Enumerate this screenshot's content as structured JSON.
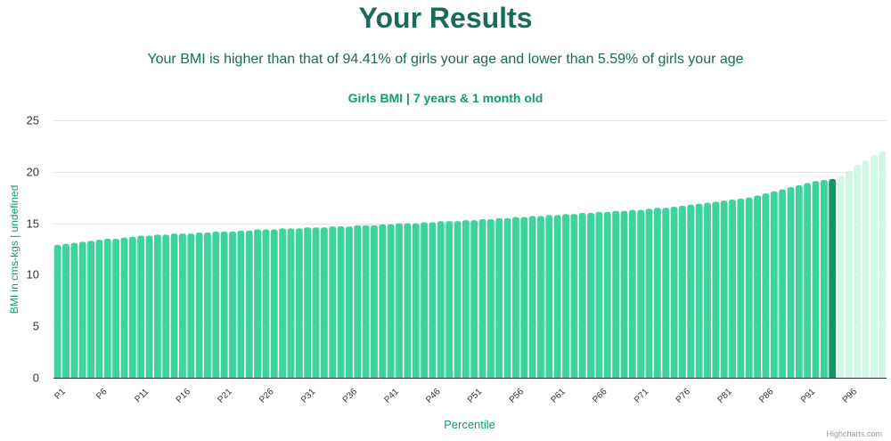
{
  "header": {
    "title": "Your Results",
    "summary": "Your BMI is higher than that of 94.41% of girls your age and lower than 5.59% of girls your age"
  },
  "credits": "Highcharts.com",
  "colors": {
    "bar": "#3dd39d",
    "highlight": "#0f9a65",
    "above": "#d2f7e6",
    "title": "#1a6b57",
    "chart_title": "#139b6a"
  },
  "chart_data": {
    "type": "bar",
    "title": "Girls BMI | 7 years & 1 month old",
    "xlabel": "Percentile",
    "ylabel": "BMI in cms-kgs | undefined",
    "ylim": [
      0,
      25
    ],
    "yticks": [
      0,
      5,
      10,
      15,
      20,
      25
    ],
    "grid": true,
    "categories": [
      "P1",
      "P2",
      "P3",
      "P4",
      "P5",
      "P6",
      "P7",
      "P8",
      "P9",
      "P10",
      "P11",
      "P12",
      "P13",
      "P14",
      "P15",
      "P16",
      "P17",
      "P18",
      "P19",
      "P20",
      "P21",
      "P22",
      "P23",
      "P24",
      "P25",
      "P26",
      "P27",
      "P28",
      "P29",
      "P30",
      "P31",
      "P32",
      "P33",
      "P34",
      "P35",
      "P36",
      "P37",
      "P38",
      "P39",
      "P40",
      "P41",
      "P42",
      "P43",
      "P44",
      "P45",
      "P46",
      "P47",
      "P48",
      "P49",
      "P50",
      "P51",
      "P52",
      "P53",
      "P54",
      "P55",
      "P56",
      "P57",
      "P58",
      "P59",
      "P60",
      "P61",
      "P62",
      "P63",
      "P64",
      "P65",
      "P66",
      "P67",
      "P68",
      "P69",
      "P70",
      "P71",
      "P72",
      "P73",
      "P74",
      "P75",
      "P76",
      "P77",
      "P78",
      "P79",
      "P80",
      "P81",
      "P82",
      "P83",
      "P84",
      "P85",
      "P86",
      "P87",
      "P88",
      "P89",
      "P90",
      "P91",
      "P92",
      "P93",
      "P94",
      "P95",
      "P96",
      "P97",
      "P98",
      "P99",
      "P100"
    ],
    "shown_tick_labels": [
      "P1",
      "P6",
      "P11",
      "P16",
      "P21",
      "P26",
      "P31",
      "P36",
      "P41",
      "P46",
      "P51",
      "P56",
      "P61",
      "P66",
      "P71",
      "P76",
      "P81",
      "P86",
      "P91",
      "P96"
    ],
    "highlight_index": 93,
    "values": [
      12.9,
      13.0,
      13.1,
      13.2,
      13.3,
      13.4,
      13.5,
      13.5,
      13.6,
      13.7,
      13.8,
      13.8,
      13.9,
      13.9,
      14.0,
      14.0,
      14.0,
      14.1,
      14.1,
      14.2,
      14.2,
      14.2,
      14.3,
      14.3,
      14.4,
      14.4,
      14.4,
      14.5,
      14.5,
      14.5,
      14.6,
      14.6,
      14.6,
      14.7,
      14.7,
      14.7,
      14.8,
      14.8,
      14.8,
      14.9,
      14.9,
      15.0,
      15.0,
      15.0,
      15.1,
      15.1,
      15.2,
      15.2,
      15.2,
      15.3,
      15.3,
      15.4,
      15.4,
      15.5,
      15.5,
      15.6,
      15.6,
      15.7,
      15.7,
      15.8,
      15.8,
      15.9,
      15.9,
      16.0,
      16.0,
      16.1,
      16.1,
      16.2,
      16.2,
      16.3,
      16.3,
      16.4,
      16.5,
      16.5,
      16.6,
      16.7,
      16.8,
      16.9,
      17.0,
      17.1,
      17.2,
      17.3,
      17.4,
      17.5,
      17.7,
      17.9,
      18.1,
      18.3,
      18.5,
      18.7,
      18.9,
      19.1,
      19.2,
      19.3,
      19.6,
      20.1,
      20.7,
      21.1,
      21.6,
      22.0
    ]
  }
}
